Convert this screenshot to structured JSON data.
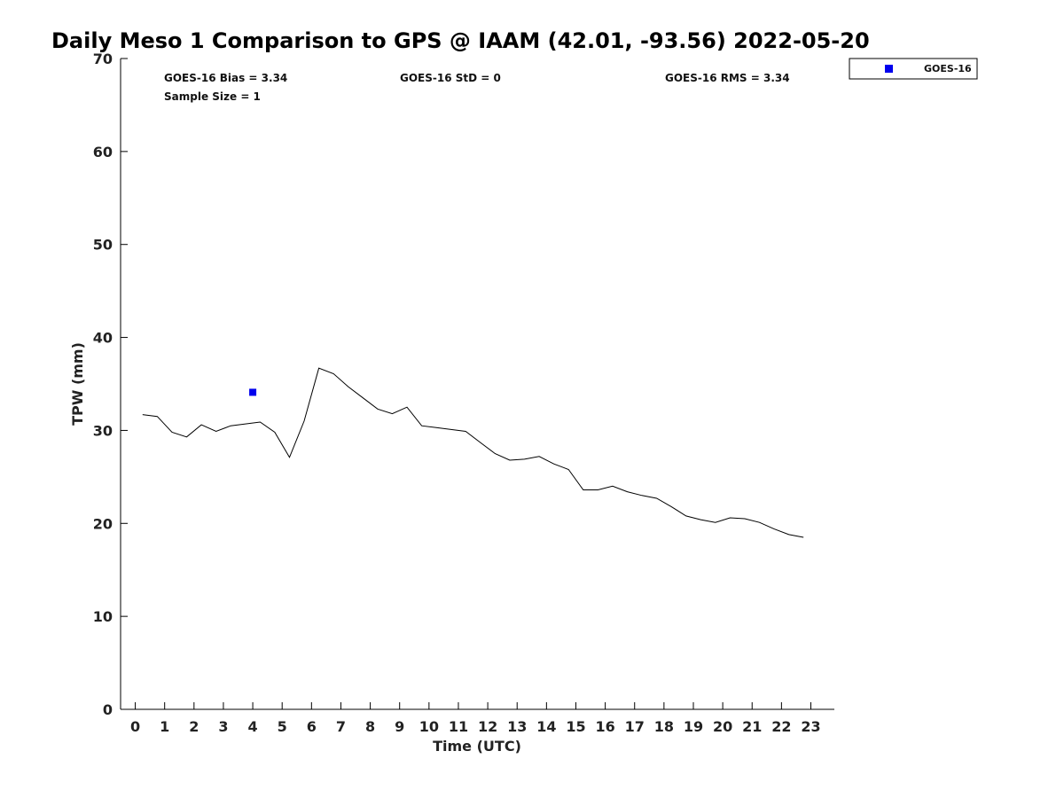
{
  "chart_data": {
    "type": "line",
    "title": "Daily Meso 1 Comparison to GPS @ IAAM (42.01, -93.56) 2022-05-20",
    "xlabel": "Time (UTC)",
    "ylabel": "TPW (mm)",
    "xlim": [
      -0.5,
      23.8
    ],
    "ylim": [
      0,
      70
    ],
    "x_ticks": [
      "0",
      "1",
      "2",
      "3",
      "4",
      "5",
      "6",
      "7",
      "8",
      "9",
      "10",
      "11",
      "12",
      "13",
      "14",
      "15",
      "16",
      "17",
      "18",
      "19",
      "20",
      "21",
      "22",
      "23"
    ],
    "y_ticks": [
      "0",
      "10",
      "20",
      "30",
      "40",
      "50",
      "60",
      "70"
    ],
    "grid": false,
    "legend_position": "outside-top-right",
    "stats": {
      "bias": "GOES-16 Bias = 3.34",
      "std": "GOES-16 StD = 0",
      "rms": "GOES-16 RMS = 3.34",
      "sample": "Sample Size = 1"
    },
    "series": [
      {
        "kind": "line",
        "color": "#000000",
        "x": [
          0.25,
          0.75,
          1.25,
          1.75,
          2.25,
          2.75,
          3.25,
          3.75,
          4.25,
          4.75,
          5.25,
          5.75,
          6.25,
          6.75,
          7.25,
          7.75,
          8.25,
          8.75,
          9.25,
          9.75,
          10.25,
          10.75,
          11.25,
          11.75,
          12.25,
          12.75,
          13.25,
          13.75,
          14.25,
          14.75,
          15.25,
          15.75,
          16.25,
          16.75,
          17.25,
          17.75,
          18.25,
          18.75,
          19.25,
          19.75,
          20.25,
          20.75,
          21.25,
          21.75,
          22.25,
          22.75
        ],
        "y": [
          31.7,
          31.5,
          29.8,
          29.3,
          30.6,
          29.9,
          30.5,
          30.7,
          30.9,
          29.8,
          27.1,
          31.0,
          36.7,
          36.1,
          34.7,
          33.5,
          32.3,
          31.8,
          32.5,
          30.5,
          30.3,
          30.1,
          29.9,
          28.7,
          27.5,
          26.8,
          26.9,
          27.2,
          26.4,
          25.8,
          23.6,
          23.6,
          24.0,
          23.4,
          23.0,
          22.7,
          21.8,
          20.8,
          20.4,
          20.1,
          20.6,
          20.5,
          20.1,
          19.4,
          18.8,
          18.5
        ]
      },
      {
        "kind": "scatter",
        "name": "GOES-16",
        "color": "#0000ee",
        "x": [
          4.0
        ],
        "y": [
          34.1
        ]
      }
    ]
  }
}
